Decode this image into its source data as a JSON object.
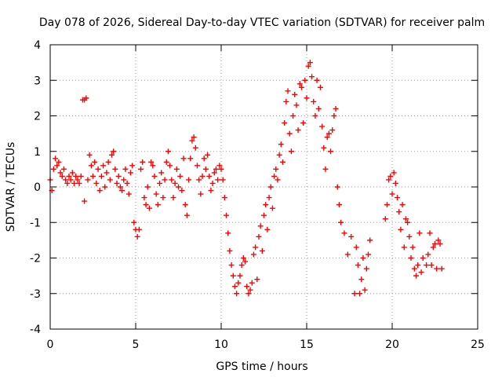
{
  "chart_data": {
    "type": "scatter",
    "title": "Day 078 of 2026, Sidereal Day-to-day VTEC variation (SDTVAR) for receiver palm",
    "xlabel": "GPS time / hours",
    "ylabel": "SDTVAR / TECUs",
    "xlim": [
      0,
      25
    ],
    "ylim": [
      -4,
      4
    ],
    "xticks": [
      "0",
      "5",
      "10",
      "15",
      "20",
      "25"
    ],
    "yticks": [
      "4",
      "3",
      "2",
      "1",
      "0",
      "-1",
      "-2",
      "-3",
      "-4"
    ],
    "grid": true,
    "marker": "+",
    "series_color": "#ff0000",
    "series": [
      {
        "name": "SDTVAR",
        "points": [
          [
            0.0,
            0.2
          ],
          [
            0.1,
            -0.1
          ],
          [
            0.2,
            0.5
          ],
          [
            0.3,
            0.8
          ],
          [
            0.4,
            0.6
          ],
          [
            0.5,
            0.7
          ],
          [
            0.6,
            0.4
          ],
          [
            0.7,
            0.3
          ],
          [
            0.8,
            0.5
          ],
          [
            0.9,
            0.2
          ],
          [
            1.0,
            0.1
          ],
          [
            1.1,
            0.3
          ],
          [
            1.2,
            0.2
          ],
          [
            1.3,
            0.4
          ],
          [
            1.4,
            0.1
          ],
          [
            1.5,
            0.3
          ],
          [
            1.6,
            0.2
          ],
          [
            1.7,
            0.1
          ],
          [
            1.8,
            0.3
          ],
          [
            1.9,
            2.45
          ],
          [
            2.0,
            2.45
          ],
          [
            2.1,
            2.5
          ],
          [
            2.0,
            -0.4
          ],
          [
            2.2,
            0.2
          ],
          [
            2.3,
            0.9
          ],
          [
            2.4,
            0.6
          ],
          [
            2.5,
            0.3
          ],
          [
            2.6,
            0.7
          ],
          [
            2.7,
            0.1
          ],
          [
            2.8,
            0.5
          ],
          [
            2.9,
            -0.1
          ],
          [
            3.0,
            0.3
          ],
          [
            3.1,
            0.6
          ],
          [
            3.2,
            0.0
          ],
          [
            3.3,
            0.4
          ],
          [
            3.4,
            0.7
          ],
          [
            3.5,
            0.2
          ],
          [
            3.6,
            0.9
          ],
          [
            3.7,
            1.0
          ],
          [
            3.8,
            0.5
          ],
          [
            3.9,
            0.1
          ],
          [
            4.0,
            0.3
          ],
          [
            4.1,
            0.0
          ],
          [
            4.2,
            -0.1
          ],
          [
            4.3,
            0.2
          ],
          [
            4.4,
            0.5
          ],
          [
            4.5,
            0.1
          ],
          [
            4.6,
            -0.2
          ],
          [
            4.7,
            0.4
          ],
          [
            4.8,
            0.6
          ],
          [
            4.9,
            -1.0
          ],
          [
            5.0,
            -1.2
          ],
          [
            5.1,
            -1.4
          ],
          [
            5.2,
            -1.2
          ],
          [
            5.3,
            0.5
          ],
          [
            5.4,
            0.7
          ],
          [
            5.5,
            -0.3
          ],
          [
            5.6,
            -0.5
          ],
          [
            5.7,
            0.0
          ],
          [
            5.8,
            -0.6
          ],
          [
            5.9,
            0.7
          ],
          [
            6.0,
            0.6
          ],
          [
            6.1,
            0.3
          ],
          [
            6.2,
            -0.2
          ],
          [
            6.3,
            -0.5
          ],
          [
            6.4,
            0.1
          ],
          [
            6.5,
            0.4
          ],
          [
            6.6,
            -0.3
          ],
          [
            6.7,
            0.2
          ],
          [
            6.8,
            0.7
          ],
          [
            6.9,
            1.0
          ],
          [
            7.0,
            0.6
          ],
          [
            7.1,
            0.2
          ],
          [
            7.2,
            -0.3
          ],
          [
            7.3,
            0.1
          ],
          [
            7.4,
            0.5
          ],
          [
            7.5,
            0.0
          ],
          [
            7.6,
            0.3
          ],
          [
            7.7,
            -0.1
          ],
          [
            7.8,
            0.8
          ],
          [
            7.9,
            -0.5
          ],
          [
            8.0,
            -0.8
          ],
          [
            8.1,
            0.2
          ],
          [
            8.2,
            0.8
          ],
          [
            8.3,
            1.3
          ],
          [
            8.4,
            1.4
          ],
          [
            8.5,
            1.1
          ],
          [
            8.6,
            0.6
          ],
          [
            8.7,
            0.2
          ],
          [
            8.8,
            -0.2
          ],
          [
            8.9,
            0.3
          ],
          [
            9.0,
            0.8
          ],
          [
            9.1,
            0.5
          ],
          [
            9.2,
            0.9
          ],
          [
            9.3,
            0.3
          ],
          [
            9.4,
            -0.1
          ],
          [
            9.5,
            0.1
          ],
          [
            9.6,
            0.4
          ],
          [
            9.7,
            0.5
          ],
          [
            9.8,
            0.2
          ],
          [
            9.9,
            0.6
          ],
          [
            10.0,
            0.5
          ],
          [
            10.1,
            0.2
          ],
          [
            10.2,
            -0.3
          ],
          [
            10.3,
            -0.8
          ],
          [
            10.4,
            -1.3
          ],
          [
            10.5,
            -1.8
          ],
          [
            10.6,
            -2.2
          ],
          [
            10.7,
            -2.5
          ],
          [
            10.8,
            -2.8
          ],
          [
            10.9,
            -3.0
          ],
          [
            11.0,
            -2.7
          ],
          [
            11.1,
            -2.5
          ],
          [
            11.2,
            -2.2
          ],
          [
            11.3,
            -2.0
          ],
          [
            11.4,
            -2.1
          ],
          [
            11.5,
            -2.8
          ],
          [
            11.6,
            -3.0
          ],
          [
            11.7,
            -2.9
          ],
          [
            11.8,
            -2.7
          ],
          [
            11.9,
            -1.9
          ],
          [
            12.0,
            -1.7
          ],
          [
            12.1,
            -2.6
          ],
          [
            12.2,
            -1.4
          ],
          [
            12.3,
            -1.1
          ],
          [
            12.4,
            -1.8
          ],
          [
            12.5,
            -0.8
          ],
          [
            12.6,
            -0.5
          ],
          [
            12.7,
            -1.2
          ],
          [
            12.8,
            -0.3
          ],
          [
            12.9,
            0.0
          ],
          [
            13.0,
            -0.6
          ],
          [
            13.1,
            0.3
          ],
          [
            13.2,
            0.5
          ],
          [
            13.3,
            0.2
          ],
          [
            13.4,
            0.9
          ],
          [
            13.5,
            1.2
          ],
          [
            13.6,
            0.7
          ],
          [
            13.7,
            1.8
          ],
          [
            13.8,
            2.4
          ],
          [
            13.9,
            2.7
          ],
          [
            14.0,
            1.5
          ],
          [
            14.1,
            1.0
          ],
          [
            14.2,
            2.0
          ],
          [
            14.3,
            2.6
          ],
          [
            14.4,
            2.3
          ],
          [
            14.5,
            1.6
          ],
          [
            14.6,
            2.9
          ],
          [
            14.7,
            2.8
          ],
          [
            14.8,
            1.8
          ],
          [
            14.9,
            3.0
          ],
          [
            15.0,
            2.5
          ],
          [
            15.1,
            3.4
          ],
          [
            15.2,
            3.5
          ],
          [
            15.3,
            3.1
          ],
          [
            15.4,
            2.4
          ],
          [
            15.5,
            2.0
          ],
          [
            15.6,
            3.0
          ],
          [
            15.7,
            2.2
          ],
          [
            15.8,
            2.8
          ],
          [
            15.9,
            1.7
          ],
          [
            16.0,
            1.1
          ],
          [
            16.1,
            0.5
          ],
          [
            16.2,
            1.4
          ],
          [
            16.3,
            1.5
          ],
          [
            16.4,
            1.0
          ],
          [
            16.5,
            1.6
          ],
          [
            16.6,
            2.0
          ],
          [
            16.7,
            2.2
          ],
          [
            16.8,
            0.0
          ],
          [
            16.9,
            -0.5
          ],
          [
            17.0,
            -1.0
          ],
          [
            17.2,
            -1.3
          ],
          [
            17.4,
            -1.9
          ],
          [
            17.6,
            -1.4
          ],
          [
            17.8,
            -3.0
          ],
          [
            17.9,
            -1.7
          ],
          [
            18.0,
            -2.2
          ],
          [
            18.1,
            -3.0
          ],
          [
            18.2,
            -2.6
          ],
          [
            18.3,
            -2.0
          ],
          [
            18.4,
            -2.9
          ],
          [
            18.5,
            -2.3
          ],
          [
            18.6,
            -1.9
          ],
          [
            18.7,
            -1.5
          ],
          [
            19.6,
            -0.9
          ],
          [
            19.7,
            -0.5
          ],
          [
            19.8,
            0.2
          ],
          [
            19.9,
            0.3
          ],
          [
            20.0,
            -0.2
          ],
          [
            20.1,
            0.4
          ],
          [
            20.2,
            0.1
          ],
          [
            20.3,
            -0.3
          ],
          [
            20.4,
            -0.7
          ],
          [
            20.5,
            -1.2
          ],
          [
            20.6,
            -0.5
          ],
          [
            20.7,
            -1.7
          ],
          [
            20.8,
            -0.9
          ],
          [
            20.9,
            -1.0
          ],
          [
            21.0,
            -1.4
          ],
          [
            21.1,
            -2.0
          ],
          [
            21.2,
            -1.7
          ],
          [
            21.3,
            -2.3
          ],
          [
            21.4,
            -2.5
          ],
          [
            21.5,
            -2.2
          ],
          [
            21.6,
            -1.3
          ],
          [
            21.7,
            -2.4
          ],
          [
            21.8,
            -2.0
          ],
          [
            22.0,
            -2.2
          ],
          [
            22.1,
            -1.9
          ],
          [
            22.2,
            -1.3
          ],
          [
            22.3,
            -2.2
          ],
          [
            22.4,
            -1.7
          ],
          [
            22.5,
            -1.6
          ],
          [
            22.6,
            -2.3
          ],
          [
            22.7,
            -1.5
          ],
          [
            22.8,
            -1.6
          ],
          [
            22.9,
            -2.3
          ]
        ]
      }
    ]
  }
}
